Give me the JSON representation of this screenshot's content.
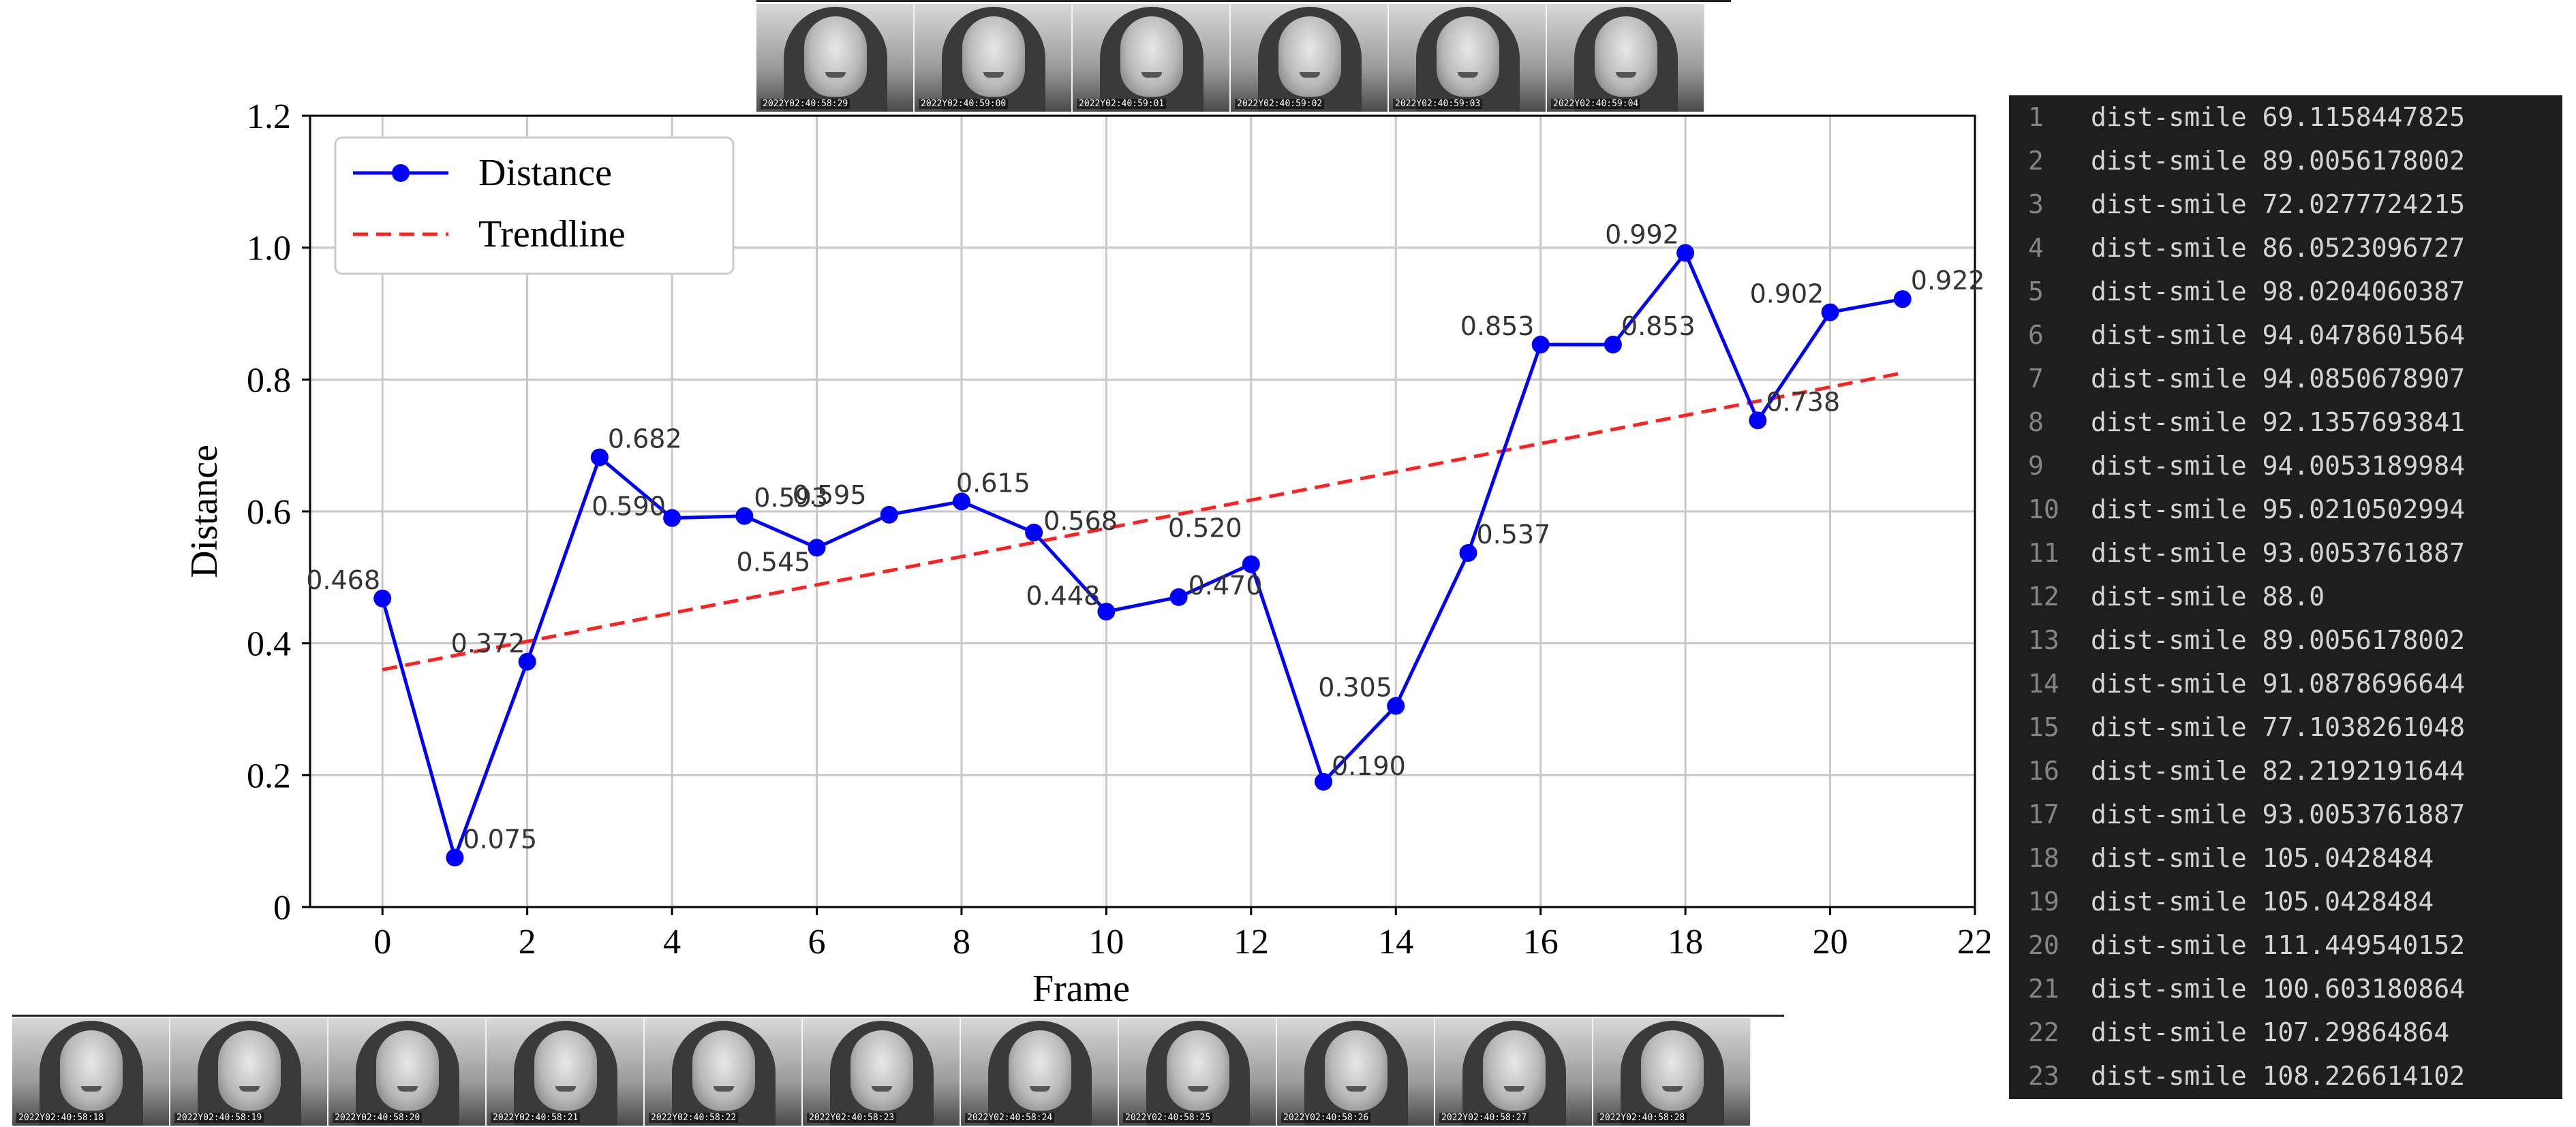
{
  "chart_data": {
    "type": "line",
    "x": [
      0,
      1,
      2,
      3,
      4,
      5,
      6,
      7,
      8,
      9,
      10,
      11,
      12,
      13,
      14,
      15,
      16,
      17,
      18,
      19,
      20,
      21
    ],
    "series": [
      {
        "name": "Distance",
        "color": "#0000ff",
        "values": [
          0.468,
          0.075,
          0.372,
          0.682,
          0.59,
          0.593,
          0.545,
          0.595,
          0.615,
          0.568,
          0.448,
          0.47,
          0.52,
          0.19,
          0.305,
          0.537,
          0.853,
          0.853,
          0.992,
          0.738,
          0.902,
          0.922
        ]
      },
      {
        "name": "Trendline",
        "color": "#ff2020",
        "style": "dashed",
        "x": [
          0,
          21
        ],
        "values": [
          0.36,
          0.81
        ]
      }
    ],
    "point_labels": [
      "0.468",
      "0.075",
      "0.372",
      "0.682",
      "0.590",
      "0.593",
      "0.545",
      "0.595",
      "0.615",
      "0.568",
      "0.448",
      "0.470",
      "0.520",
      "0.190",
      "0.305",
      "0.537",
      "0.853",
      "0.853",
      "0.992",
      "0.738",
      "0.902",
      "0.922"
    ],
    "xlabel": "Frame",
    "ylabel": "Distance",
    "xlim": [
      -1,
      22
    ],
    "ylim": [
      0,
      1.2
    ],
    "xticks": [
      0,
      2,
      4,
      6,
      8,
      10,
      12,
      14,
      16,
      18,
      20,
      22
    ],
    "xtick_labels": [
      "0",
      "2",
      "4",
      "6",
      "8",
      "10",
      "12",
      "14",
      "16",
      "18",
      "20",
      "22"
    ],
    "yticks": [
      0,
      0.2,
      0.4,
      0.6,
      0.8,
      1.0,
      1.2
    ],
    "ytick_labels": [
      "0",
      "0.2",
      "0.4",
      "0.6",
      "0.8",
      "1.0",
      "1.2"
    ],
    "grid": true,
    "legend_position": "top-left"
  },
  "top_strip": {
    "timestamps": [
      "2022Y02:40:58:29",
      "2022Y02:40:59:00",
      "2022Y02:40:59:01",
      "2022Y02:40:59:02",
      "2022Y02:40:59:03",
      "2022Y02:40:59:04"
    ]
  },
  "bottom_strip": {
    "timestamps": [
      "2022Y02:40:58:18",
      "2022Y02:40:58:19",
      "2022Y02:40:58:20",
      "2022Y02:40:58:21",
      "2022Y02:40:58:22",
      "2022Y02:40:58:23",
      "2022Y02:40:58:24",
      "2022Y02:40:58:25",
      "2022Y02:40:58:26",
      "2022Y02:40:58:27",
      "2022Y02:40:58:28"
    ]
  },
  "code_panel": {
    "lines": [
      {
        "num": "1",
        "text": "dist-smile 69.1158447825"
      },
      {
        "num": "2",
        "text": "dist-smile 89.0056178002"
      },
      {
        "num": "3",
        "text": "dist-smile 72.0277724215"
      },
      {
        "num": "4",
        "text": "dist-smile 86.0523096727"
      },
      {
        "num": "5",
        "text": "dist-smile 98.0204060387"
      },
      {
        "num": "6",
        "text": "dist-smile 94.0478601564"
      },
      {
        "num": "7",
        "text": "dist-smile 94.0850678907"
      },
      {
        "num": "8",
        "text": "dist-smile 92.1357693841"
      },
      {
        "num": "9",
        "text": "dist-smile 94.0053189984"
      },
      {
        "num": "10",
        "text": "dist-smile 95.0210502994"
      },
      {
        "num": "11",
        "text": "dist-smile 93.0053761887"
      },
      {
        "num": "12",
        "text": "dist-smile 88.0"
      },
      {
        "num": "13",
        "text": "dist-smile 89.0056178002"
      },
      {
        "num": "14",
        "text": "dist-smile 91.0878696644"
      },
      {
        "num": "15",
        "text": "dist-smile 77.1038261048"
      },
      {
        "num": "16",
        "text": "dist-smile 82.2192191644"
      },
      {
        "num": "17",
        "text": "dist-smile 93.0053761887"
      },
      {
        "num": "18",
        "text": "dist-smile 105.0428484"
      },
      {
        "num": "19",
        "text": "dist-smile 105.0428484"
      },
      {
        "num": "20",
        "text": "dist-smile 111.449540152"
      },
      {
        "num": "21",
        "text": "dist-smile 100.603180864"
      },
      {
        "num": "22",
        "text": "dist-smile 107.29864864"
      },
      {
        "num": "23",
        "text": "dist-smile 108.226614102"
      }
    ]
  }
}
